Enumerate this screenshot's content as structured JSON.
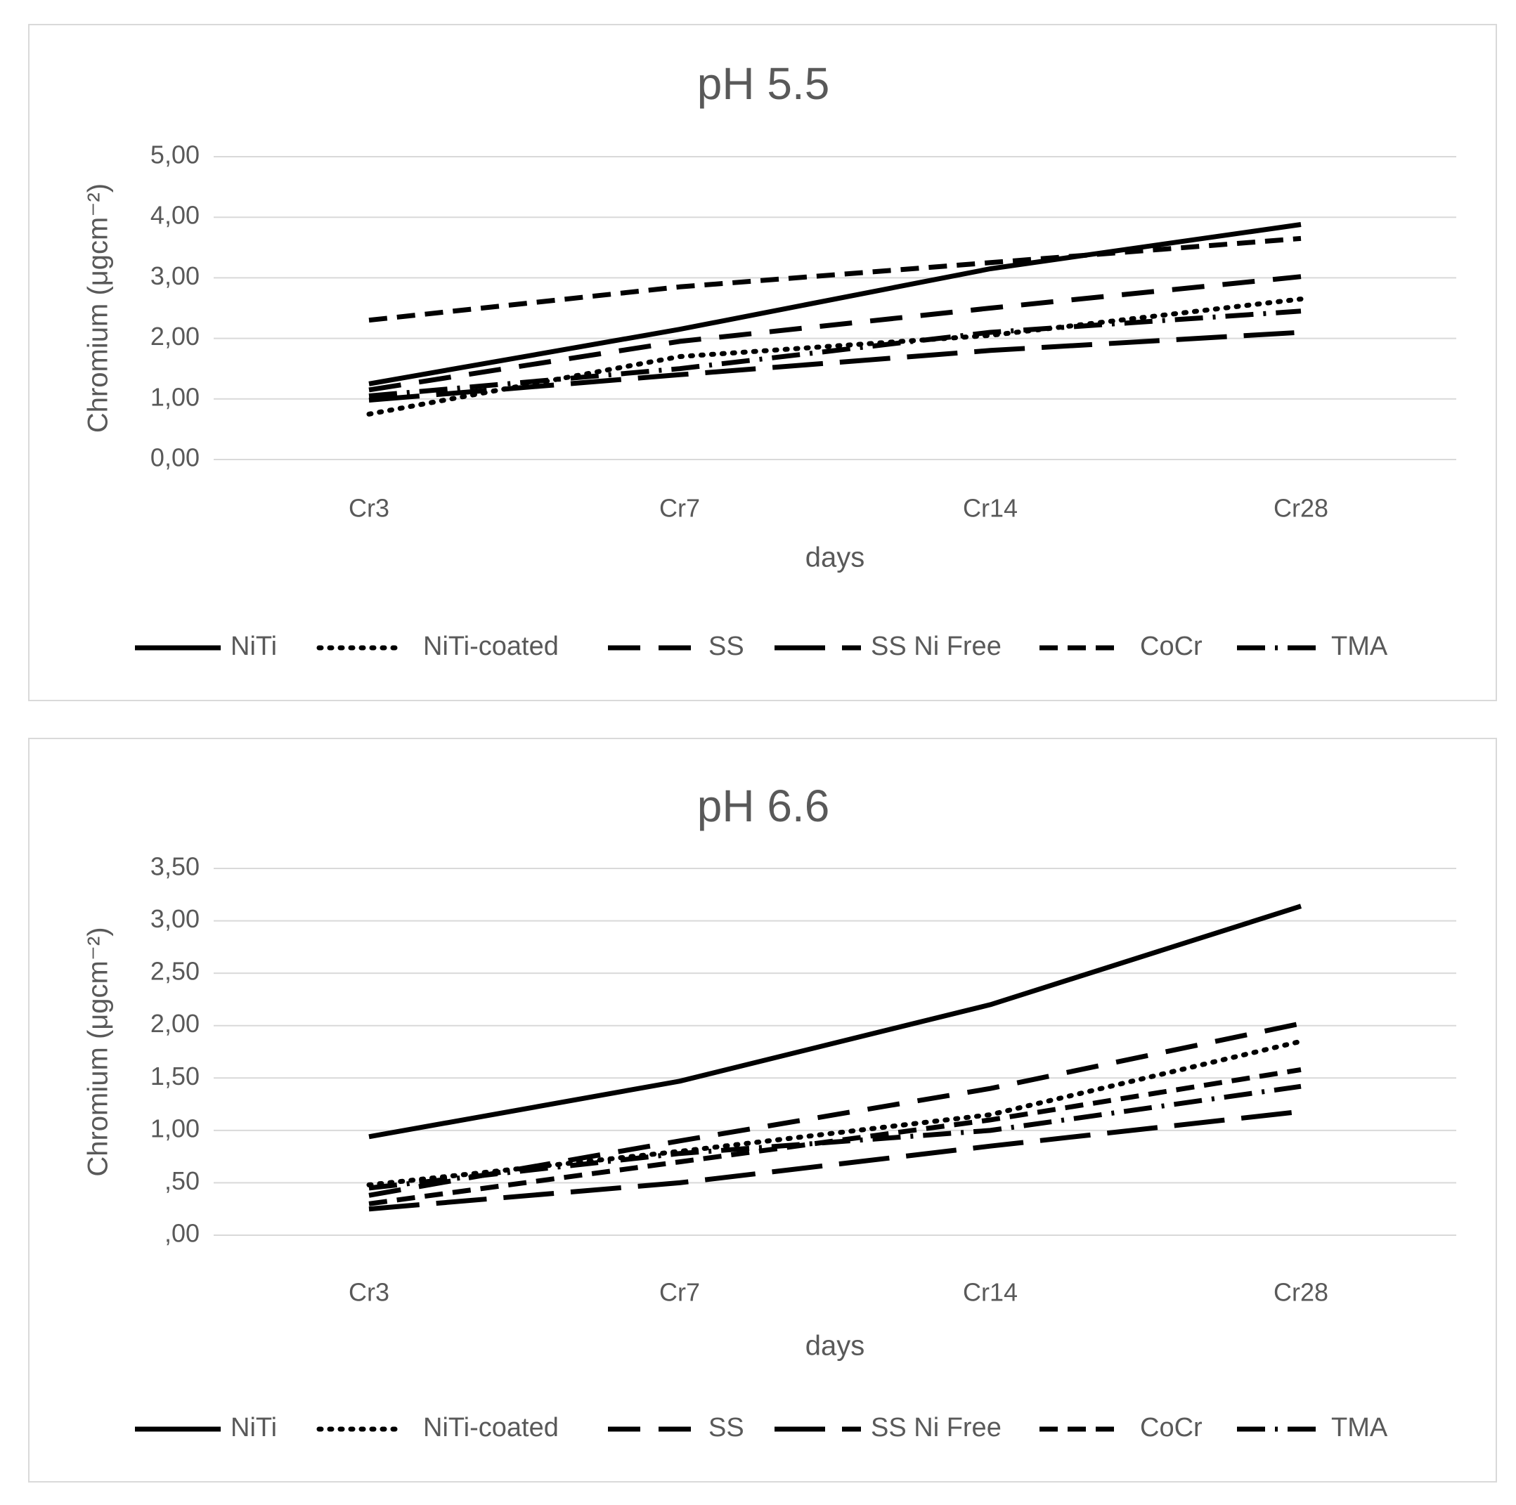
{
  "chart_data": [
    {
      "type": "line",
      "title": "pH 5.5",
      "xlabel": "days",
      "ylabel": "Chromium (μgcm⁻²)",
      "categories": [
        "Cr3",
        "Cr7",
        "Cr14",
        "Cr28"
      ],
      "ylim": [
        0,
        5
      ],
      "yticks": [
        0,
        1,
        2,
        3,
        4,
        5
      ],
      "ytick_labels": [
        "0,00",
        "1,00",
        "2,00",
        "3,00",
        "4,00",
        "5,00"
      ],
      "grid": true,
      "legend_position": "bottom",
      "series": [
        {
          "name": "NiTi",
          "values": [
            1.25,
            2.15,
            3.15,
            3.88
          ],
          "dash": "none",
          "color": "#000000"
        },
        {
          "name": "NiTi-coated",
          "values": [
            0.75,
            1.7,
            2.05,
            2.65
          ],
          "dash": "3 12",
          "color": "#000000"
        },
        {
          "name": "SS",
          "values": [
            1.15,
            1.95,
            2.5,
            3.02
          ],
          "dash": "46 26",
          "color": "#000000"
        },
        {
          "name": "SS Ni Free",
          "values": [
            0.98,
            1.4,
            1.8,
            2.1
          ],
          "dash": "72 24",
          "color": "#000000"
        },
        {
          "name": "CoCr",
          "values": [
            2.3,
            2.85,
            3.25,
            3.65
          ],
          "dash": "26 14",
          "color": "#000000"
        },
        {
          "name": "TMA",
          "values": [
            1.05,
            1.5,
            2.1,
            2.45
          ],
          "dash": "40 14 4 14",
          "color": "#000000"
        }
      ]
    },
    {
      "type": "line",
      "title": "pH 6.6",
      "xlabel": "days",
      "ylabel": "Chromium (μgcm⁻²)",
      "categories": [
        "Cr3",
        "Cr7",
        "Cr14",
        "Cr28"
      ],
      "ylim": [
        0,
        3.5
      ],
      "yticks": [
        0,
        0.5,
        1,
        1.5,
        2,
        2.5,
        3,
        3.5
      ],
      "ytick_labels": [
        ",00",
        ",50",
        "1,00",
        "1,50",
        "2,00",
        "2,50",
        "3,00",
        "3,50"
      ],
      "grid": true,
      "legend_position": "bottom",
      "series": [
        {
          "name": "NiTi",
          "values": [
            0.94,
            1.47,
            2.2,
            3.14
          ],
          "dash": "none",
          "color": "#000000"
        },
        {
          "name": "NiTi-coated",
          "values": [
            0.48,
            0.8,
            1.15,
            1.85
          ],
          "dash": "3 12",
          "color": "#000000"
        },
        {
          "name": "SS",
          "values": [
            0.38,
            0.9,
            1.4,
            2.02
          ],
          "dash": "46 26",
          "color": "#000000"
        },
        {
          "name": "SS Ni Free",
          "values": [
            0.25,
            0.5,
            0.85,
            1.18
          ],
          "dash": "72 24",
          "color": "#000000"
        },
        {
          "name": "CoCr",
          "values": [
            0.3,
            0.7,
            1.1,
            1.58
          ],
          "dash": "26 14",
          "color": "#000000"
        },
        {
          "name": "TMA",
          "values": [
            0.45,
            0.78,
            1.0,
            1.42
          ],
          "dash": "40 14 4 14",
          "color": "#000000"
        }
      ]
    }
  ]
}
